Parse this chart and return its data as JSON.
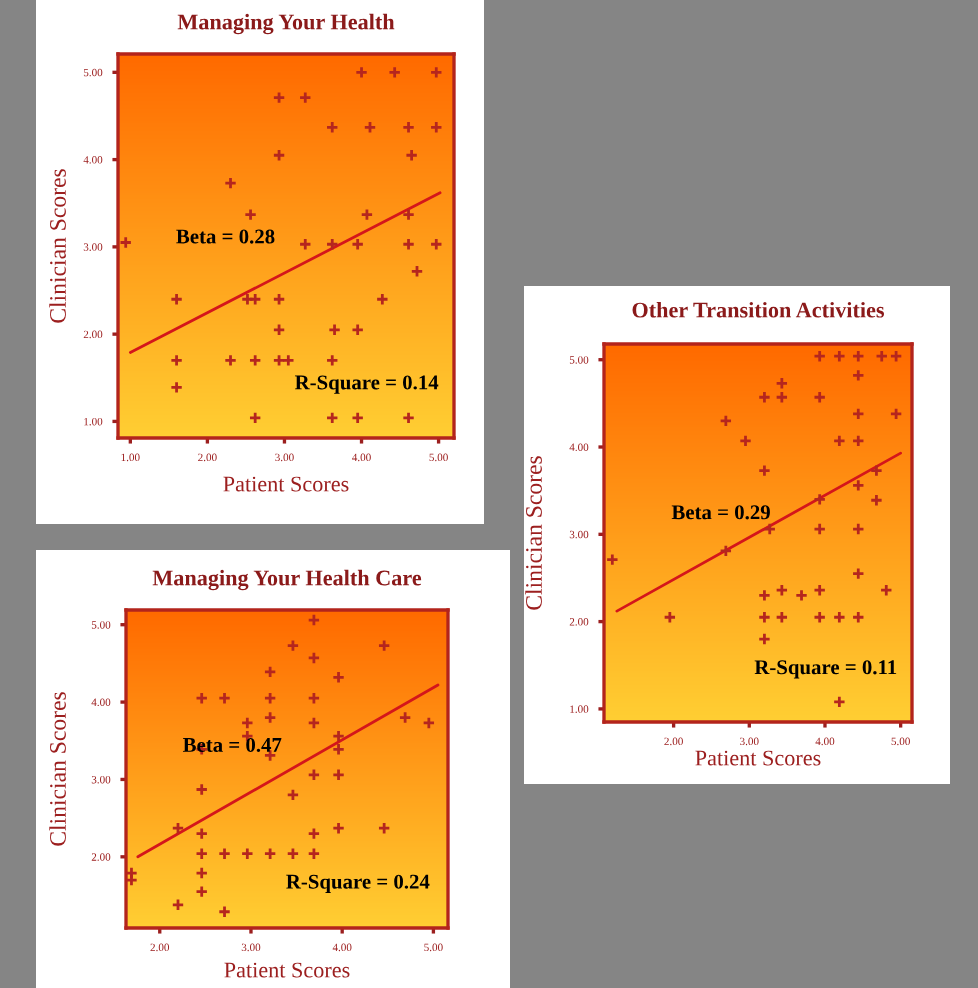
{
  "chart_data": [
    {
      "type": "scatter",
      "title": "Managing Your Health",
      "xlabel": "Patient Scores",
      "ylabel": "Clinician Scores",
      "annotations": [
        "Beta = 0.28",
        "R-Square = 0.14"
      ],
      "grid": false,
      "xlim": [
        0.84,
        5.2
      ],
      "ylim": [
        0.81,
        5.21
      ],
      "xticks": [
        {
          "value": 1,
          "label": "1.00"
        },
        {
          "value": 2,
          "label": "2.00"
        },
        {
          "value": 3,
          "label": "3.00"
        },
        {
          "value": 4,
          "label": "4.00"
        },
        {
          "value": 5,
          "label": "5.00"
        }
      ],
      "yticks": [
        {
          "value": 1,
          "label": "1.00"
        },
        {
          "value": 2,
          "label": "2.00"
        },
        {
          "value": 3,
          "label": "3.00"
        },
        {
          "value": 4,
          "label": "4.00"
        },
        {
          "value": 5,
          "label": "5.00"
        }
      ],
      "series": [
        {
          "type": "scatter",
          "marker": "cross",
          "color": "#b5261e",
          "x": [
            0.94,
            4.0,
            4.43,
            4.97,
            2.93,
            3.27,
            3.62,
            4.11,
            4.61,
            4.97,
            2.93,
            4.65,
            2.3,
            2.56,
            4.07,
            4.61,
            3.27,
            3.62,
            3.95,
            4.61,
            4.97,
            4.72,
            1.6,
            2.52,
            2.62,
            2.93,
            4.27,
            2.93,
            3.65,
            3.95,
            1.6,
            2.3,
            2.62,
            2.93,
            3.05,
            3.62,
            1.6,
            2.62,
            3.62,
            3.95,
            4.61
          ],
          "values": [
            3.05,
            5.0,
            5.0,
            5.0,
            4.71,
            4.71,
            4.37,
            4.37,
            4.37,
            4.37,
            4.05,
            4.05,
            3.73,
            3.37,
            3.37,
            3.37,
            3.03,
            3.03,
            3.03,
            3.03,
            3.03,
            2.72,
            2.4,
            2.4,
            2.4,
            2.4,
            2.4,
            2.05,
            2.05,
            2.05,
            1.7,
            1.7,
            1.7,
            1.7,
            1.7,
            1.7,
            1.39,
            1.04,
            1.04,
            1.04,
            1.04
          ]
        },
        {
          "type": "line",
          "color": "#d4161b",
          "x": [
            1.0,
            5.02
          ],
          "values": [
            1.79,
            3.62
          ]
        }
      ]
    },
    {
      "type": "scatter",
      "title": "Other Transition Activities",
      "xlabel": "Patient Scores",
      "ylabel": "Clinician Scores",
      "annotations": [
        "Beta = 0.29",
        "R-Square = 0.11"
      ],
      "grid": false,
      "xlim": [
        1.08,
        5.15
      ],
      "ylim": [
        0.85,
        5.18
      ],
      "xticks": [
        {
          "value": 2,
          "label": "2.00"
        },
        {
          "value": 3,
          "label": "3.00"
        },
        {
          "value": 4,
          "label": "4.00"
        },
        {
          "value": 5,
          "label": "5.00"
        }
      ],
      "yticks": [
        {
          "value": 1,
          "label": "1.00"
        },
        {
          "value": 2,
          "label": "2.00"
        },
        {
          "value": 3,
          "label": "3.00"
        },
        {
          "value": 4,
          "label": "4.00"
        },
        {
          "value": 5,
          "label": "5.00"
        }
      ],
      "series": [
        {
          "type": "scatter",
          "marker": "cross",
          "color": "#b5261e",
          "x": [
            1.19,
            1.95,
            2.69,
            2.69,
            2.95,
            3.2,
            3.43,
            3.93,
            3.43,
            3.2,
            3.93,
            4.19,
            4.44,
            4.75,
            4.94,
            4.44,
            4.44,
            4.94,
            4.19,
            4.44,
            4.68,
            4.44,
            3.93,
            4.68,
            3.27,
            3.93,
            4.44,
            4.44,
            3.2,
            3.43,
            3.69,
            3.93,
            4.81,
            3.2,
            3.43,
            3.93,
            4.19,
            4.44,
            3.2,
            4.19
          ],
          "values": [
            2.71,
            2.05,
            2.81,
            4.3,
            4.07,
            4.57,
            4.57,
            4.57,
            4.73,
            3.73,
            5.04,
            5.04,
            5.04,
            5.04,
            5.04,
            4.82,
            4.38,
            4.38,
            4.07,
            4.07,
            3.73,
            3.56,
            3.4,
            3.39,
            3.06,
            3.06,
            3.06,
            2.55,
            2.3,
            2.36,
            2.3,
            2.36,
            2.36,
            2.05,
            2.05,
            2.05,
            2.05,
            2.05,
            1.8,
            1.08
          ]
        },
        {
          "type": "line",
          "color": "#d4161b",
          "x": [
            1.25,
            5.0
          ],
          "values": [
            2.12,
            3.93
          ]
        }
      ]
    },
    {
      "type": "scatter",
      "title": "Managing Your Health Care",
      "xlabel": "Patient Scores",
      "ylabel": "Clinician Scores",
      "annotations": [
        "Beta = 0.47",
        "R-Square = 0.24"
      ],
      "grid": false,
      "xlim": [
        1.63,
        5.16
      ],
      "ylim": [
        1.08,
        5.19
      ],
      "xticks": [
        {
          "value": 2,
          "label": "2.00"
        },
        {
          "value": 3,
          "label": "3.00"
        },
        {
          "value": 4,
          "label": "4.00"
        },
        {
          "value": 5,
          "label": "5.00"
        }
      ],
      "yticks": [
        {
          "value": 2,
          "label": "2.00"
        },
        {
          "value": 3,
          "label": "3.00"
        },
        {
          "value": 4,
          "label": "4.00"
        },
        {
          "value": 5,
          "label": "5.00"
        }
      ],
      "series": [
        {
          "type": "scatter",
          "marker": "cross",
          "color": "#b5261e",
          "x": [
            3.69,
            3.46,
            4.46,
            3.69,
            3.21,
            3.96,
            2.46,
            2.71,
            3.21,
            3.69,
            3.21,
            4.69,
            4.95,
            2.96,
            3.69,
            2.96,
            3.96,
            2.46,
            3.96,
            3.21,
            3.69,
            3.96,
            2.46,
            3.46,
            2.2,
            3.96,
            4.46,
            2.46,
            3.69,
            2.46,
            2.71,
            2.96,
            3.21,
            3.46,
            3.69,
            1.69,
            1.69,
            2.46,
            2.46,
            2.2,
            2.71
          ],
          "values": [
            5.06,
            4.73,
            4.73,
            4.57,
            4.39,
            4.32,
            4.05,
            4.05,
            4.05,
            4.05,
            3.8,
            3.8,
            3.73,
            3.73,
            3.73,
            3.56,
            3.56,
            3.39,
            3.39,
            3.31,
            3.06,
            3.06,
            2.87,
            2.8,
            2.37,
            2.37,
            2.37,
            2.3,
            2.3,
            2.04,
            2.04,
            2.04,
            2.04,
            2.04,
            2.04,
            1.79,
            1.7,
            1.79,
            1.55,
            1.38,
            1.29
          ]
        },
        {
          "type": "line",
          "color": "#d4161b",
          "x": [
            1.76,
            5.05
          ],
          "values": [
            2.0,
            4.22
          ]
        }
      ]
    }
  ]
}
